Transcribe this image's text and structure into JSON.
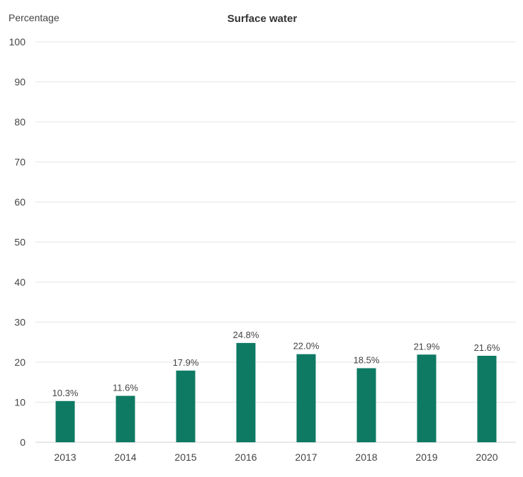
{
  "chart_data": {
    "type": "bar",
    "title": "Surface water",
    "ylabel": "Percentage",
    "xlabel": "",
    "categories": [
      "2013",
      "2014",
      "2015",
      "2016",
      "2017",
      "2018",
      "2019",
      "2020"
    ],
    "values": [
      10.3,
      11.6,
      17.9,
      24.8,
      22.0,
      18.5,
      21.9,
      21.6
    ],
    "value_labels": [
      "10.3%",
      "11.6%",
      "17.9%",
      "24.8%",
      "22.0%",
      "18.5%",
      "21.9%",
      "21.6%"
    ],
    "ylim": [
      0,
      100
    ],
    "yticks": [
      0,
      10,
      20,
      30,
      40,
      50,
      60,
      70,
      80,
      90,
      100
    ],
    "grid": true,
    "legend": "none",
    "colors": {
      "bar": "#0e7a64",
      "grid": "#e6e6e6",
      "axis": "#d0d0d0",
      "text": "#444444",
      "title": "#333333"
    }
  }
}
